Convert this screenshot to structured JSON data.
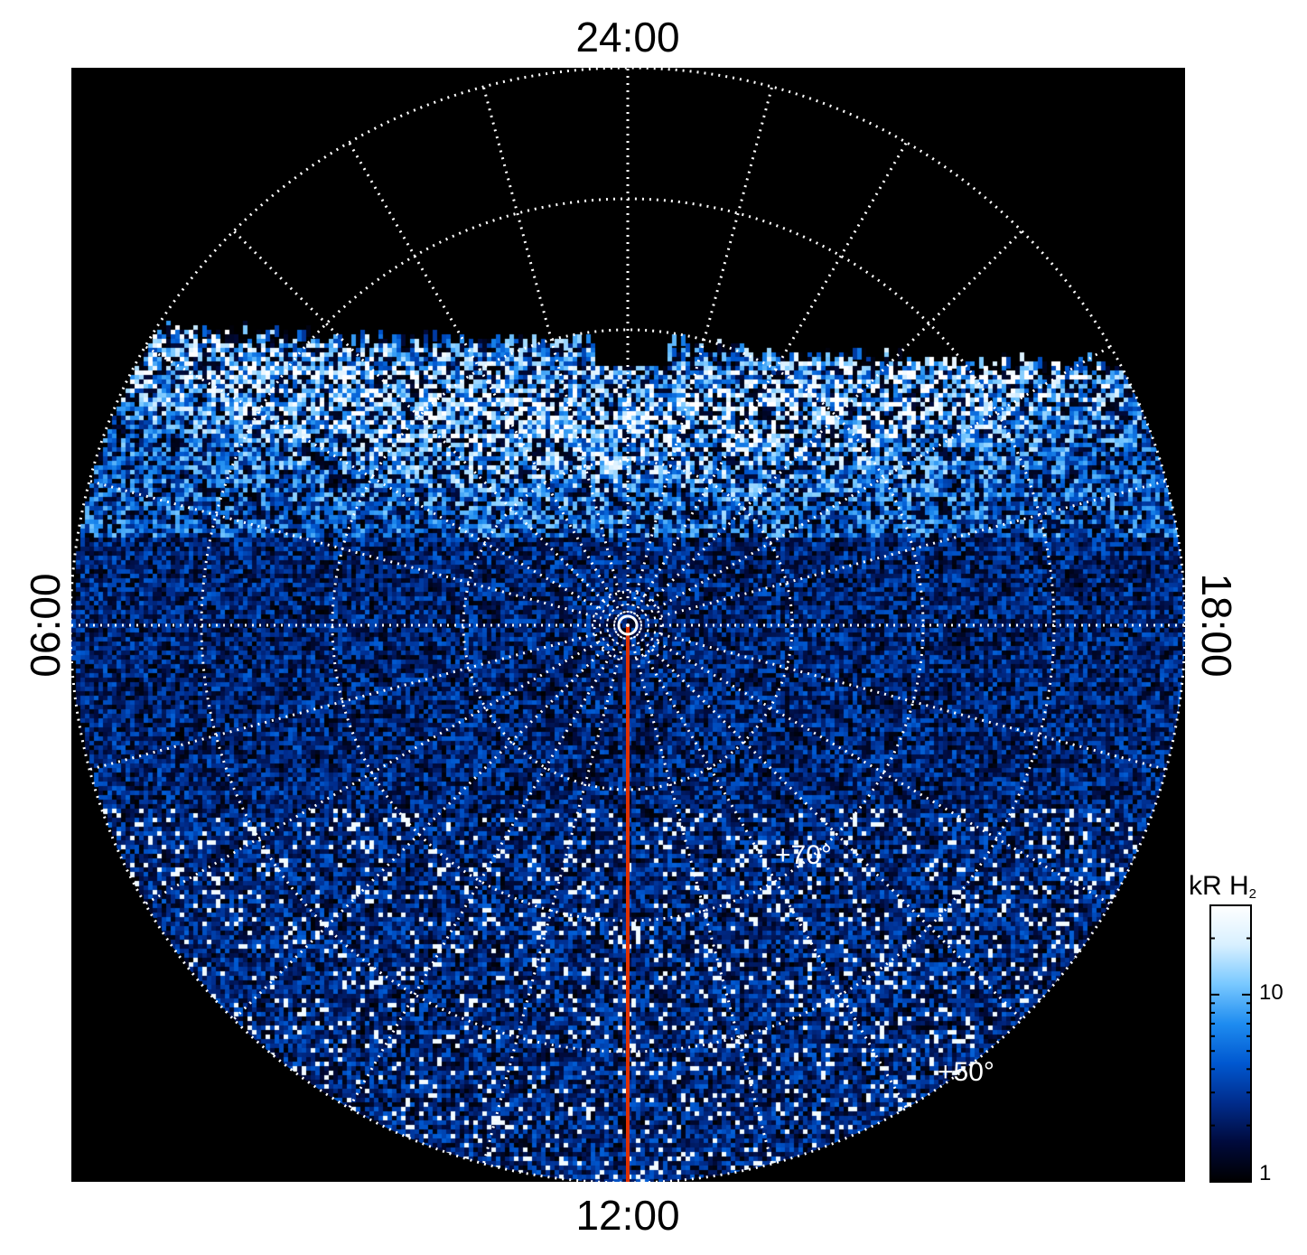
{
  "chart_data": {
    "type": "heatmap",
    "projection": "polar",
    "local_time_labels": {
      "top": "24:00",
      "bottom": "12:00",
      "left": "06:00",
      "right": "18:00"
    },
    "latitude_labels": [
      "+70°",
      "+50°"
    ],
    "colorbar": {
      "title": "kR H",
      "title_subscript": "2",
      "scale": "log",
      "range": [
        1,
        30
      ],
      "ticks": [
        "1",
        "10"
      ],
      "colormap": [
        "#000000",
        "#000a3c",
        "#002c8c",
        "#0058d0",
        "#1e8cf0",
        "#78c8ff",
        "#d8f0ff",
        "#ffffff"
      ]
    },
    "grid": true,
    "meridian_marker_color": "#e03000"
  }
}
